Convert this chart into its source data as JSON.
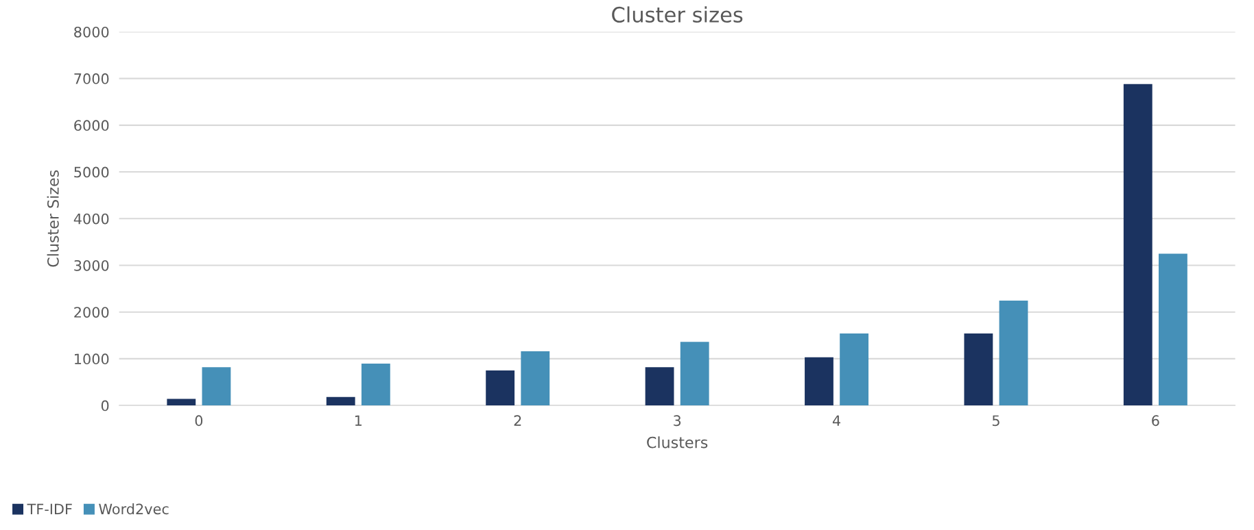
{
  "chart_data": {
    "type": "bar",
    "title": "Cluster sizes",
    "xlabel": "Clusters",
    "ylabel": "Cluster Sizes",
    "categories": [
      "0",
      "1",
      "2",
      "3",
      "4",
      "5",
      "6"
    ],
    "series": [
      {
        "name": "TF-IDF",
        "color": "#1b3360",
        "values": [
          140,
          180,
          750,
          820,
          1030,
          1540,
          6880
        ]
      },
      {
        "name": "Word2vec",
        "color": "#4590b8",
        "values": [
          820,
          895,
          1160,
          1360,
          1540,
          2245,
          3250
        ]
      }
    ],
    "ylim": [
      0,
      8000
    ],
    "yticks": [
      0,
      1000,
      2000,
      3000,
      4000,
      5000,
      6000,
      7000,
      8000
    ],
    "grid": "y",
    "legend": "bottom left"
  }
}
